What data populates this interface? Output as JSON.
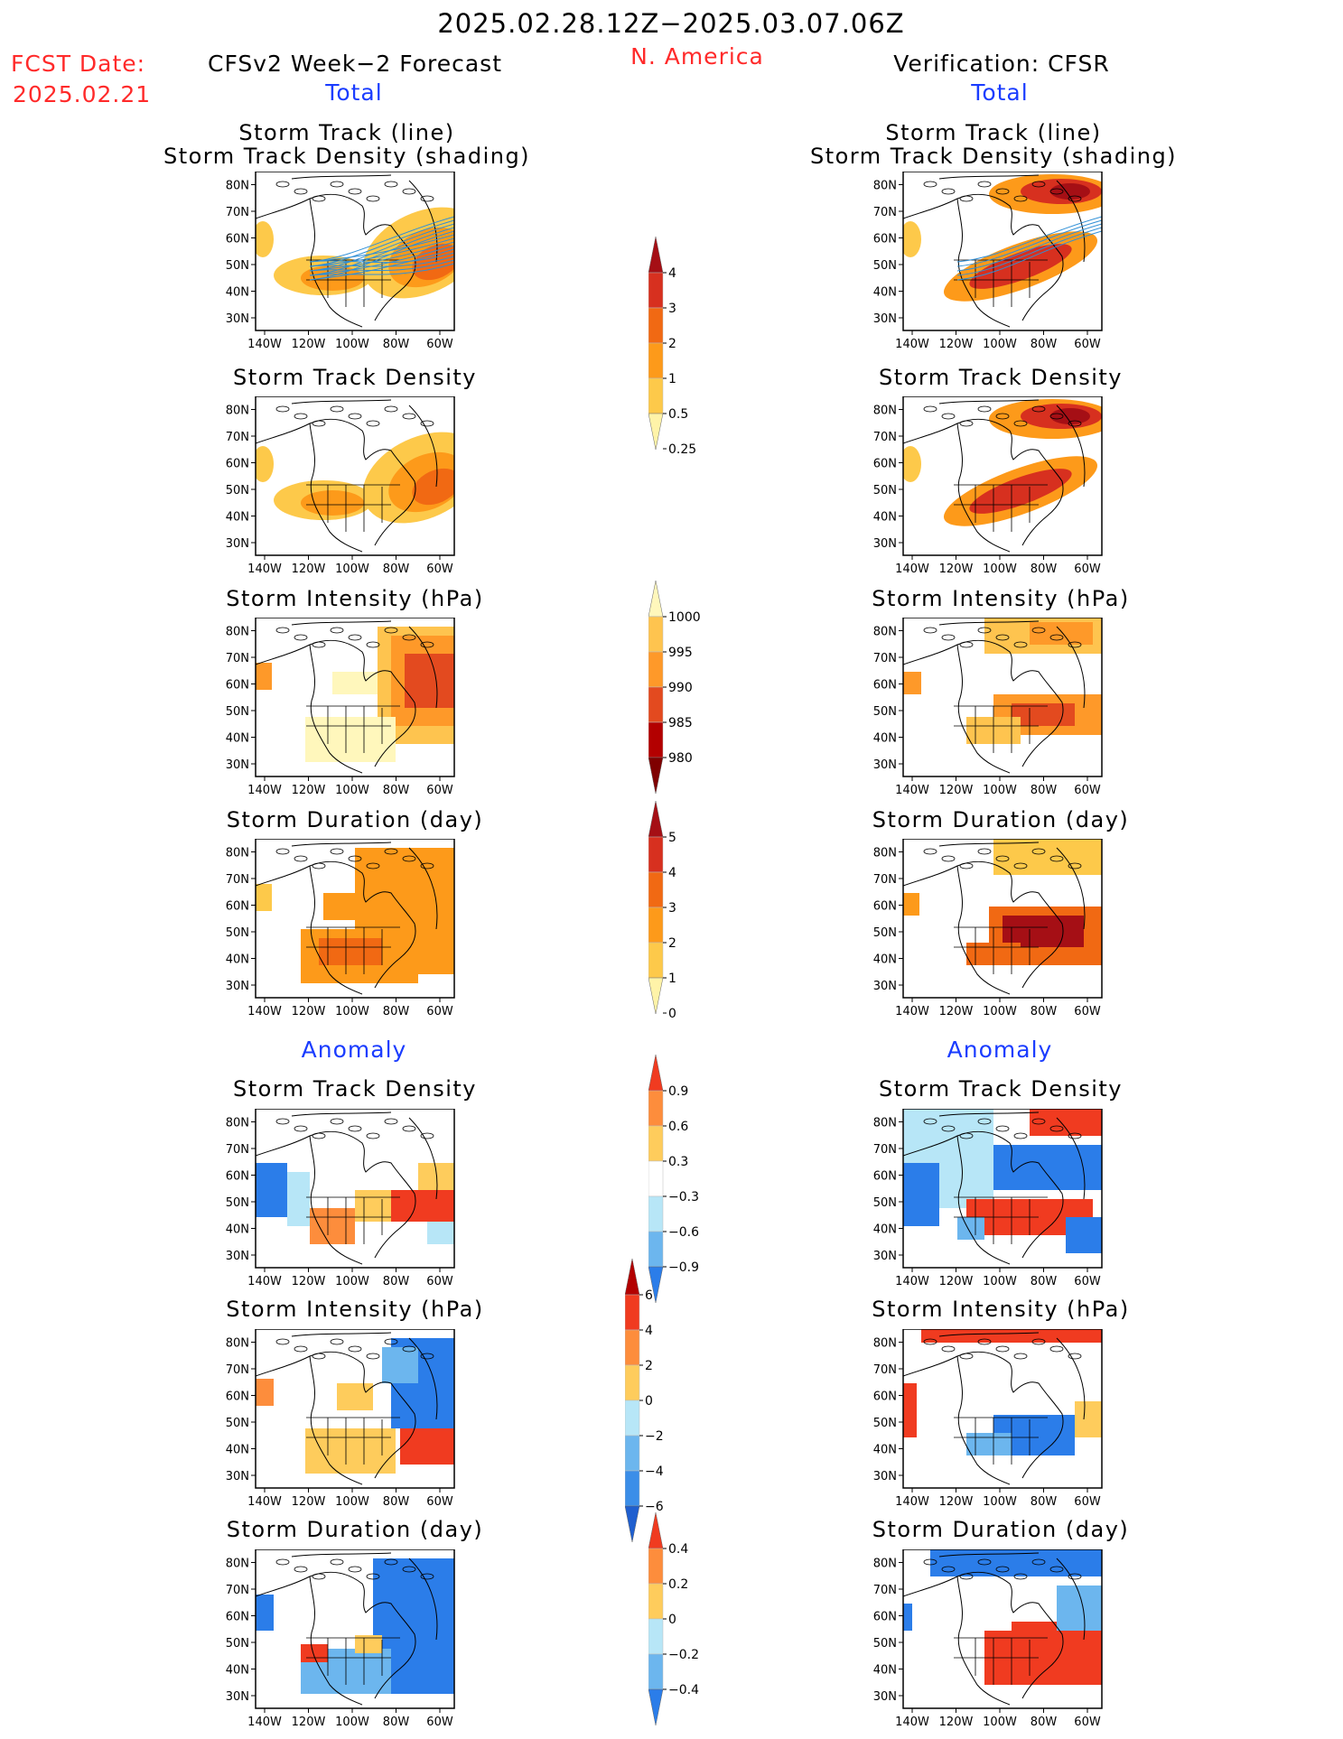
{
  "header": {
    "title": "2025.02.28.12Z−2025.03.07.06Z",
    "region": "N. America",
    "fcst_label": "FCST Date:",
    "fcst_date": "2025.02.21",
    "left_heading": "CFSv2 Week−2 Forecast",
    "right_heading": "Verification: CFSR",
    "total_label": "Total",
    "anomaly_label": "Anomaly"
  },
  "axes": {
    "lat_ticks": [
      "30N",
      "40N",
      "50N",
      "60N",
      "70N",
      "80N"
    ],
    "lon_ticks": [
      "140W",
      "120W",
      "100W",
      "80W",
      "60W"
    ]
  },
  "panels": {
    "row1_title_a": "Storm Track (line)",
    "row1_title_b": "Storm Track Density (shading)",
    "density": "Storm Track Density",
    "intensity": "Storm Intensity (hPa)",
    "duration": "Storm Duration (day)"
  },
  "colorbars": {
    "density_total": {
      "labels": [
        "4",
        "3",
        "2",
        "1",
        "0.5",
        "0.25"
      ],
      "colors": [
        "#a50f15",
        "#d7301f",
        "#f16913",
        "#fd9a1a",
        "#fdc94a",
        "#fff3a8"
      ]
    },
    "intensity_total": {
      "labels": [
        "1000",
        "995",
        "990",
        "985",
        "980"
      ],
      "colors": [
        "#fff7bc",
        "#fec44f",
        "#fe9929",
        "#e34a1f",
        "#b30000",
        "#7f0000"
      ]
    },
    "duration_total": {
      "labels": [
        "5",
        "4",
        "3",
        "2",
        "1",
        "0"
      ],
      "colors": [
        "#a50f15",
        "#d7301f",
        "#f16913",
        "#fd9a1a",
        "#fdc94a",
        "#fff3a8"
      ]
    },
    "density_anom": {
      "labels": [
        "0.9",
        "0.6",
        "0.3",
        "−0.3",
        "−0.6",
        "−0.9"
      ],
      "colors": [
        "#f03b20",
        "#fd8d3c",
        "#fecc5c",
        "#ffffff",
        "#b7e6f7",
        "#6cb6ee",
        "#2b7de9"
      ]
    },
    "intensity_anom": {
      "labels": [
        "6",
        "4",
        "2",
        "0",
        "−2",
        "−4",
        "−6"
      ],
      "colors": [
        "#b30000",
        "#f03b20",
        "#fd8d3c",
        "#fecc5c",
        "#b7e6f7",
        "#6cb6ee",
        "#3b8ee8",
        "#1f5fcf"
      ]
    },
    "duration_anom": {
      "labels": [
        "0.4",
        "0.2",
        "0",
        "−0.2",
        "−0.4"
      ],
      "colors": [
        "#f03b20",
        "#fd8d3c",
        "#fecc5c",
        "#b7e6f7",
        "#6cb6ee",
        "#2b7de9"
      ]
    }
  }
}
